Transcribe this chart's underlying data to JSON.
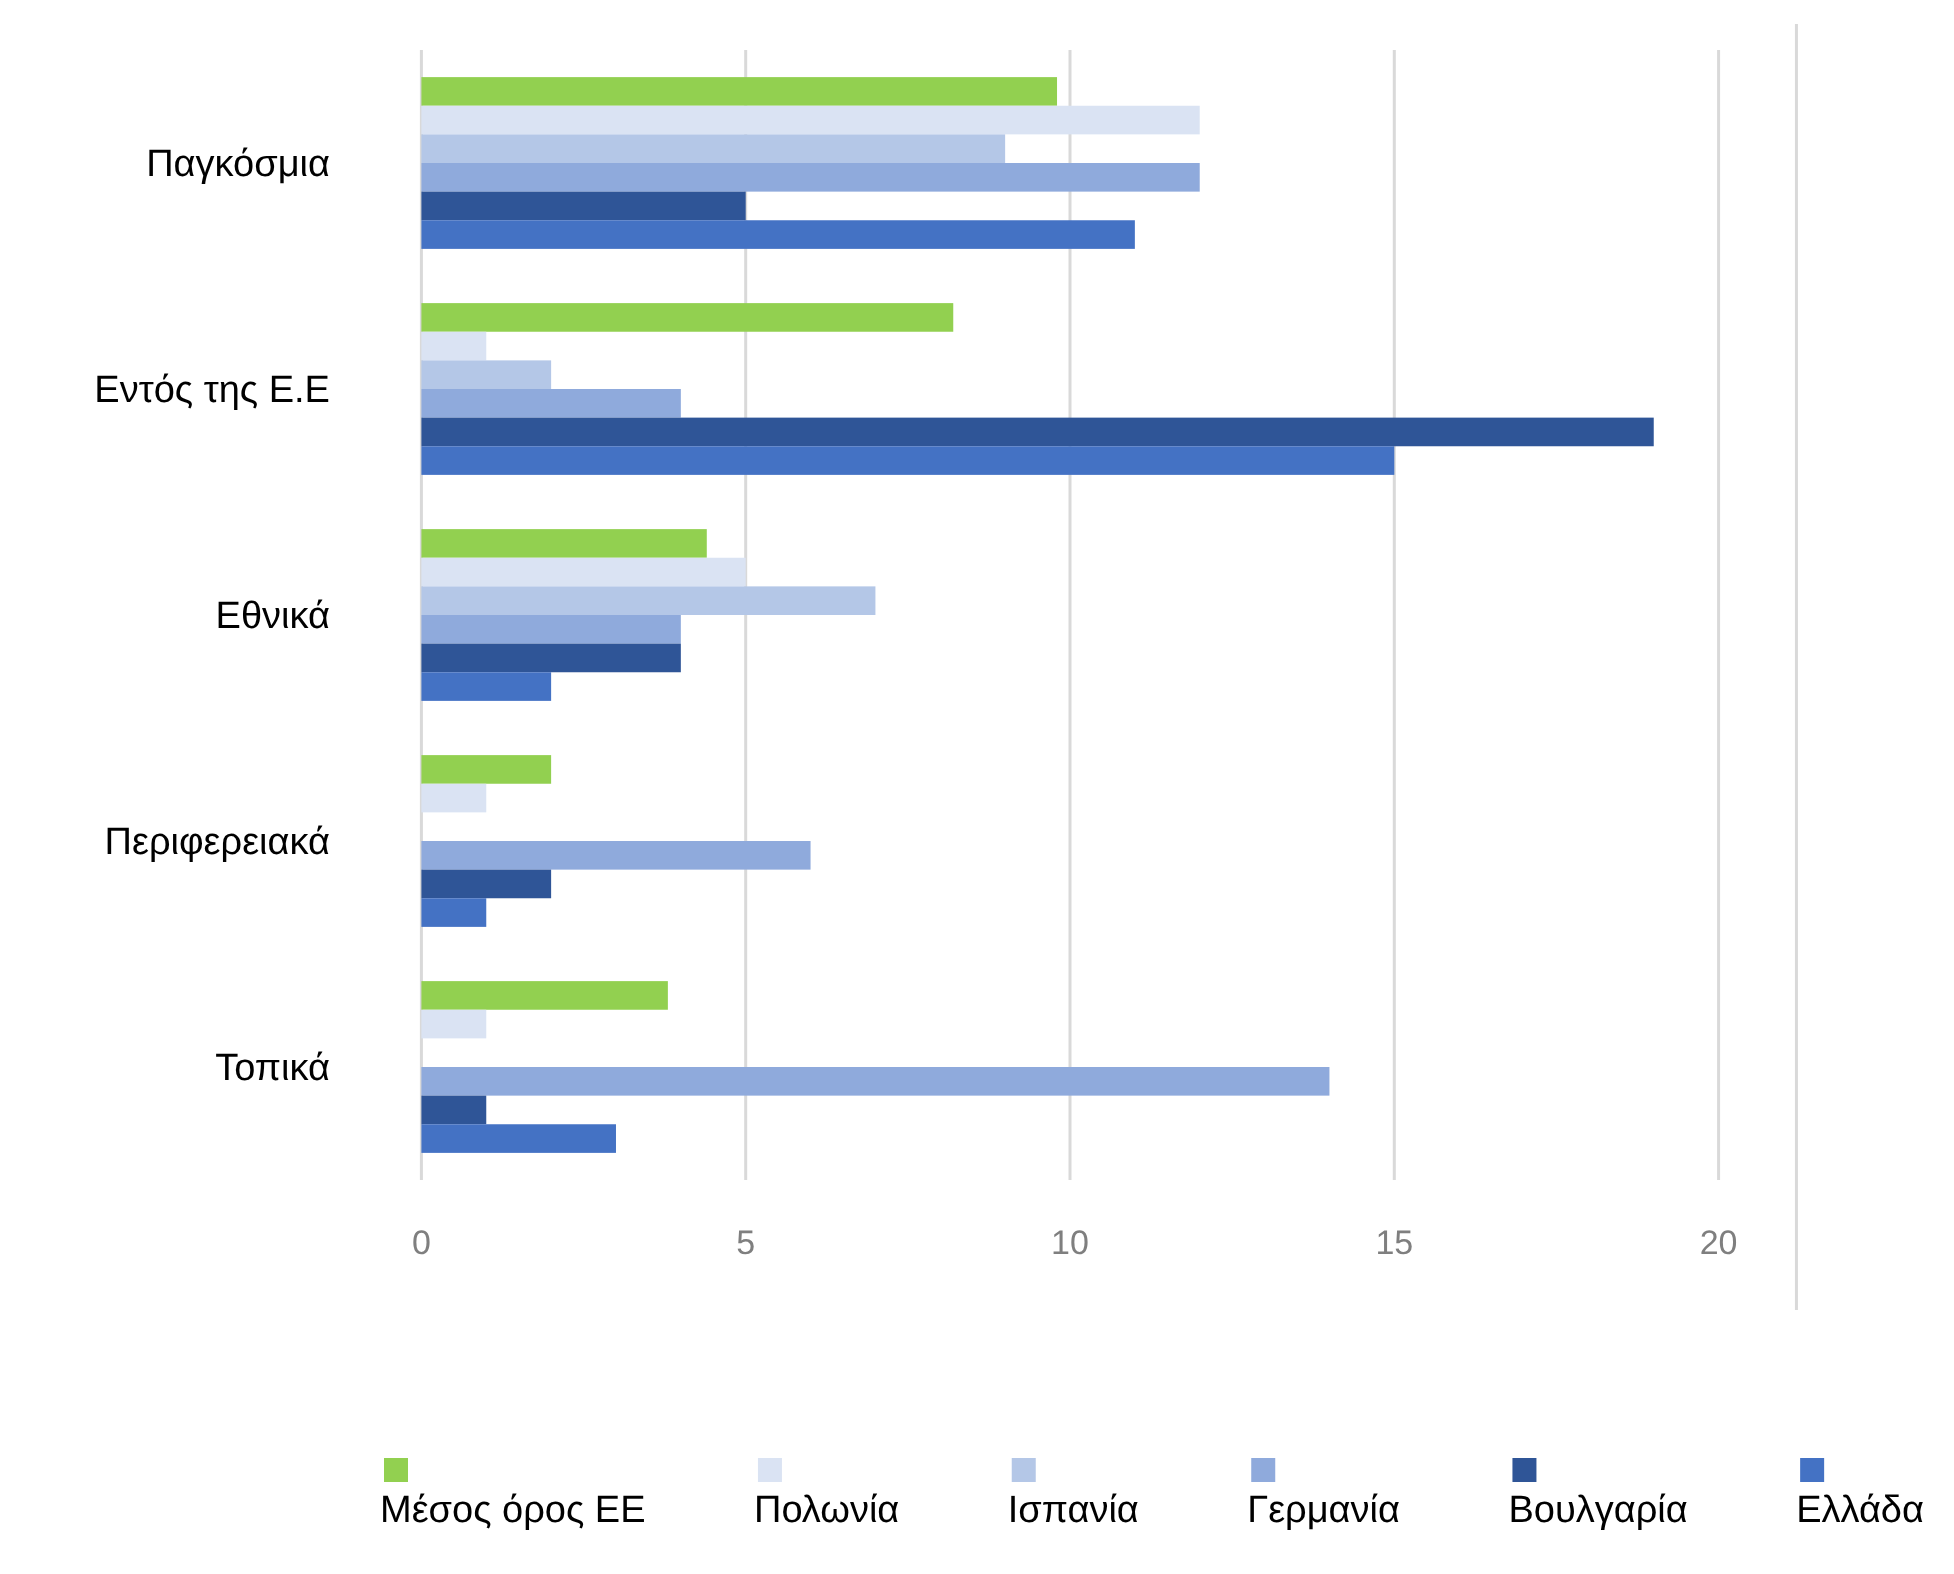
{
  "chart_data": {
    "type": "bar",
    "orientation": "horizontal",
    "categories": [
      "Παγκόσμια",
      "Εντός της Ε.Ε",
      "Εθνικά",
      "Περιφερειακά",
      "Τοπικά"
    ],
    "series": [
      {
        "name": "Μέσος όρος ΕΕ",
        "color": "#92d050",
        "values": [
          9.8,
          8.2,
          4.4,
          2,
          3.8
        ]
      },
      {
        "name": "Πολωνία",
        "color": "#dae3f3",
        "values": [
          12,
          1,
          5,
          1,
          1
        ]
      },
      {
        "name": "Ισπανία",
        "color": "#b4c7e7",
        "values": [
          9,
          2,
          7,
          0,
          0
        ]
      },
      {
        "name": "Γερμανία",
        "color": "#8faadc",
        "values": [
          12,
          4,
          4,
          6,
          14
        ]
      },
      {
        "name": "Βουλγαρία",
        "color": "#2f5597",
        "values": [
          5,
          19,
          4,
          2,
          1
        ]
      },
      {
        "name": "Ελλάδα",
        "color": "#4472c4",
        "values": [
          11,
          15,
          2,
          1,
          3
        ]
      }
    ],
    "xlim": [
      0,
      21.2
    ],
    "xticks": [
      0,
      5,
      10,
      15,
      20
    ],
    "grid": "x",
    "legend": "bottom"
  }
}
